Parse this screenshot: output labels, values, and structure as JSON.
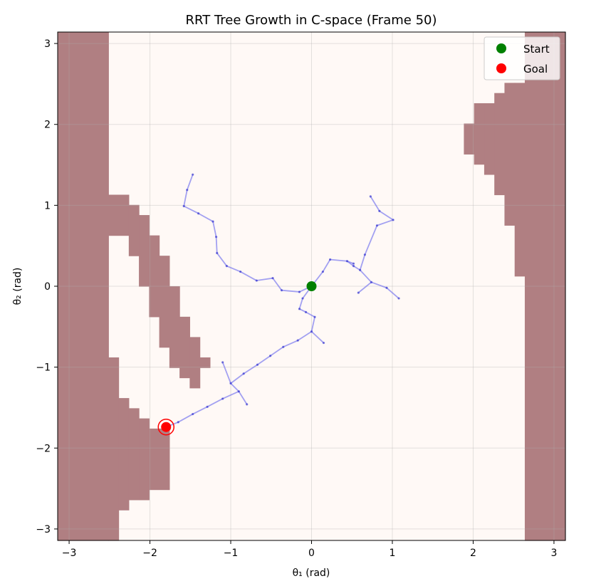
{
  "chart_data": {
    "type": "scatter",
    "title": "RRT Tree Growth in C-space (Frame 50)",
    "xlabel": "θ₁ (rad)",
    "ylabel": "θ₂ (rad)",
    "xlim": [
      -3.1416,
      3.1416
    ],
    "ylim": [
      -3.1416,
      3.1416
    ],
    "x_ticks": [
      -3,
      -2,
      -1,
      0,
      1,
      2,
      3
    ],
    "y_ticks": [
      -3,
      -2,
      -1,
      0,
      1,
      2,
      3
    ],
    "x_tick_labels": [
      "−3",
      "−2",
      "−1",
      "0",
      "1",
      "2",
      "3"
    ],
    "y_tick_labels": [
      "−3",
      "−2",
      "−1",
      "0",
      "1",
      "2",
      "3"
    ],
    "grid": true,
    "legend_position": "top-right",
    "colors": {
      "background": "#fff9f6",
      "obstacle": "#b07f82",
      "tree": "#6666ee",
      "start": "#008000",
      "goal": "#ff0000"
    },
    "obstacles": [
      [
        -3.1416,
        -2.5133,
        -3.1416,
        3.1416
      ],
      [
        -2.5133,
        -2.2619,
        0.6283,
        1.131
      ],
      [
        -2.2619,
        -2.1363,
        0.377,
        1.0053
      ],
      [
        -2.1363,
        -2.0106,
        0.0,
        0.8796
      ],
      [
        -2.0106,
        -1.885,
        -0.377,
        0.6283
      ],
      [
        -1.885,
        -1.7593,
        -0.754,
        0.377
      ],
      [
        -1.7593,
        -1.6336,
        -1.0053,
        -0.0
      ],
      [
        -1.6336,
        -1.508,
        -1.131,
        -0.377
      ],
      [
        -1.508,
        -1.3823,
        -1.2566,
        -0.6283
      ],
      [
        -1.3823,
        -1.2566,
        -1.0053,
        -0.8796
      ],
      [
        -2.5133,
        -2.3876,
        -3.1416,
        -0.8796
      ],
      [
        -2.3876,
        -2.2619,
        -2.7646,
        -1.3823
      ],
      [
        -2.2619,
        -2.1363,
        -2.6389,
        -1.508
      ],
      [
        -2.1363,
        -2.0106,
        -2.6389,
        -1.6336
      ],
      [
        -2.0106,
        -1.7593,
        -2.5133,
        -1.7593
      ],
      [
        2.6389,
        3.1416,
        -3.1416,
        3.1416
      ],
      [
        2.5133,
        2.6389,
        0.1257,
        2.5133
      ],
      [
        2.3876,
        2.5133,
        0.754,
        2.5133
      ],
      [
        2.2619,
        2.3876,
        1.131,
        2.3876
      ],
      [
        2.1363,
        2.2619,
        1.3823,
        2.2619
      ],
      [
        2.0106,
        2.1363,
        1.508,
        2.2619
      ],
      [
        1.885,
        2.0106,
        1.6336,
        2.0106
      ]
    ],
    "tree_edges": [
      [
        [
          0.0,
          0.0
        ],
        [
          -0.15,
          -0.07
        ]
      ],
      [
        [
          -0.15,
          -0.07
        ],
        [
          -0.37,
          -0.05
        ]
      ],
      [
        [
          -0.37,
          -0.05
        ],
        [
          -0.48,
          0.1
        ]
      ],
      [
        [
          -0.48,
          0.1
        ],
        [
          -0.68,
          0.07
        ]
      ],
      [
        [
          -0.68,
          0.07
        ],
        [
          -0.88,
          0.18
        ]
      ],
      [
        [
          -0.88,
          0.18
        ],
        [
          -1.05,
          0.25
        ]
      ],
      [
        [
          -1.05,
          0.25
        ],
        [
          -1.17,
          0.41
        ]
      ],
      [
        [
          -1.17,
          0.41
        ],
        [
          -1.18,
          0.61
        ]
      ],
      [
        [
          -1.18,
          0.61
        ],
        [
          -1.22,
          0.8
        ]
      ],
      [
        [
          -1.22,
          0.8
        ],
        [
          -1.4,
          0.9
        ]
      ],
      [
        [
          -1.4,
          0.9
        ],
        [
          -1.58,
          0.99
        ]
      ],
      [
        [
          -1.58,
          0.99
        ],
        [
          -1.54,
          1.19
        ]
      ],
      [
        [
          -1.54,
          1.19
        ],
        [
          -1.47,
          1.38
        ]
      ],
      [
        [
          0.0,
          0.0
        ],
        [
          0.14,
          0.18
        ]
      ],
      [
        [
          0.14,
          0.18
        ],
        [
          0.23,
          0.33
        ]
      ],
      [
        [
          0.23,
          0.33
        ],
        [
          0.44,
          0.31
        ]
      ],
      [
        [
          0.44,
          0.31
        ],
        [
          0.52,
          0.25
        ]
      ],
      [
        [
          0.52,
          0.25
        ],
        [
          0.6,
          0.2
        ]
      ],
      [
        [
          0.6,
          0.2
        ],
        [
          0.74,
          0.05
        ]
      ],
      [
        [
          0.74,
          0.05
        ],
        [
          0.93,
          -0.02
        ]
      ],
      [
        [
          0.93,
          -0.02
        ],
        [
          1.08,
          -0.15
        ]
      ],
      [
        [
          0.74,
          0.05
        ],
        [
          0.58,
          -0.08
        ]
      ],
      [
        [
          0.6,
          0.2
        ],
        [
          0.66,
          0.39
        ]
      ],
      [
        [
          0.66,
          0.39
        ],
        [
          0.81,
          0.75
        ]
      ],
      [
        [
          0.81,
          0.75
        ],
        [
          1.01,
          0.82
        ]
      ],
      [
        [
          1.01,
          0.82
        ],
        [
          0.84,
          0.93
        ]
      ],
      [
        [
          0.84,
          0.93
        ],
        [
          0.73,
          1.11
        ]
      ],
      [
        [
          0.44,
          0.31
        ],
        [
          0.52,
          0.28
        ]
      ],
      [
        [
          0.0,
          0.0
        ],
        [
          -0.11,
          -0.15
        ]
      ],
      [
        [
          -0.11,
          -0.15
        ],
        [
          -0.15,
          -0.28
        ]
      ],
      [
        [
          -0.15,
          -0.28
        ],
        [
          -0.07,
          -0.32
        ]
      ],
      [
        [
          -0.07,
          -0.32
        ],
        [
          0.04,
          -0.38
        ]
      ],
      [
        [
          0.04,
          -0.38
        ],
        [
          0.0,
          -0.56
        ]
      ],
      [
        [
          0.0,
          -0.56
        ],
        [
          0.15,
          -0.7
        ]
      ],
      [
        [
          0.0,
          -0.56
        ],
        [
          -0.17,
          -0.67
        ]
      ],
      [
        [
          -0.17,
          -0.67
        ],
        [
          -0.35,
          -0.75
        ]
      ],
      [
        [
          -0.35,
          -0.75
        ],
        [
          -0.51,
          -0.86
        ]
      ],
      [
        [
          -0.51,
          -0.86
        ],
        [
          -0.67,
          -0.97
        ]
      ],
      [
        [
          -0.67,
          -0.97
        ],
        [
          -0.84,
          -1.08
        ]
      ],
      [
        [
          -0.84,
          -1.08
        ],
        [
          -1.0,
          -1.2
        ]
      ],
      [
        [
          -1.0,
          -1.2
        ],
        [
          -1.1,
          -0.94
        ]
      ],
      [
        [
          -1.0,
          -1.2
        ],
        [
          -0.9,
          -1.3
        ]
      ],
      [
        [
          -0.9,
          -1.3
        ],
        [
          -0.8,
          -1.46
        ]
      ],
      [
        [
          -0.9,
          -1.3
        ],
        [
          -1.1,
          -1.39
        ]
      ],
      [
        [
          -1.1,
          -1.39
        ],
        [
          -1.29,
          -1.49
        ]
      ],
      [
        [
          -1.29,
          -1.49
        ],
        [
          -1.47,
          -1.58
        ]
      ],
      [
        [
          -1.47,
          -1.58
        ],
        [
          -1.65,
          -1.68
        ]
      ],
      [
        [
          -1.65,
          -1.68
        ],
        [
          -1.8,
          -1.74
        ]
      ]
    ],
    "start": {
      "x": 0.0,
      "y": 0.0
    },
    "goal": {
      "x": -1.8,
      "y": -1.74
    },
    "legend": [
      {
        "label": "Start",
        "color": "#008000"
      },
      {
        "label": "Goal",
        "color": "#ff0000"
      }
    ]
  }
}
